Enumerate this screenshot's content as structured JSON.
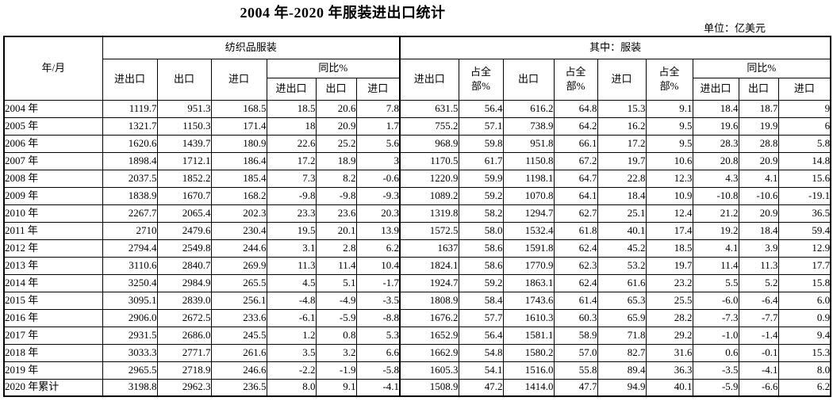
{
  "title": "2004 年-2020 年服装进出口统计",
  "unit_note": "单位：亿美元",
  "table": {
    "year_col_header": "年/月",
    "textile_group_header": "纺织品服装",
    "apparel_group_header": "其中：服装",
    "labels": {
      "import_export": "进出口",
      "export": "出口",
      "import": "进口",
      "yoy": "同比%",
      "share": "占全部%"
    },
    "rows": [
      {
        "year": "2004 年",
        "values": [
          "1119.7",
          "951.3",
          "168.5",
          "18.5",
          "20.6",
          "7.8",
          "631.5",
          "56.4",
          "616.2",
          "64.8",
          "15.3",
          "9.1",
          "18.4",
          "18.7",
          "9"
        ]
      },
      {
        "year": "2005 年",
        "values": [
          "1321.7",
          "1150.3",
          "171.4",
          "18",
          "20.9",
          "1.7",
          "755.2",
          "57.1",
          "738.9",
          "64.2",
          "16.2",
          "9.5",
          "19.6",
          "19.9",
          "6"
        ]
      },
      {
        "year": "2006 年",
        "values": [
          "1620.6",
          "1439.7",
          "180.9",
          "22.6",
          "25.2",
          "5.6",
          "968.9",
          "59.8",
          "951.8",
          "66.1",
          "17.2",
          "9.5",
          "28.3",
          "28.8",
          "5.8"
        ]
      },
      {
        "year": "2007 年",
        "values": [
          "1898.4",
          "1712.1",
          "186.4",
          "17.2",
          "18.9",
          "3",
          "1170.5",
          "61.7",
          "1150.8",
          "67.2",
          "19.7",
          "10.6",
          "20.8",
          "20.9",
          "14.8"
        ]
      },
      {
        "year": "2008 年",
        "values": [
          "2037.5",
          "1852.2",
          "185.4",
          "7.3",
          "8.2",
          "-0.6",
          "1220.9",
          "59.9",
          "1198.1",
          "64.7",
          "22.8",
          "12.3",
          "4.3",
          "4.1",
          "15.6"
        ]
      },
      {
        "year": "2009 年",
        "values": [
          "1838.9",
          "1670.7",
          "168.2",
          "-9.8",
          "-9.8",
          "-9.3",
          "1089.2",
          "59.2",
          "1070.8",
          "64.1",
          "18.4",
          "10.9",
          "-10.8",
          "-10.6",
          "-19.1"
        ]
      },
      {
        "year": "2010 年",
        "values": [
          "2267.7",
          "2065.4",
          "202.3",
          "23.3",
          "23.6",
          "20.3",
          "1319.8",
          "58.2",
          "1294.7",
          "62.7",
          "25.1",
          "12.4",
          "21.2",
          "20.9",
          "36.5"
        ]
      },
      {
        "year": "2011 年",
        "values": [
          "2710",
          "2479.6",
          "230.4",
          "19.5",
          "20.1",
          "13.9",
          "1572.5",
          "58.0",
          "1532.4",
          "61.8",
          "40.1",
          "17.4",
          "19.2",
          "18.4",
          "59.4"
        ]
      },
      {
        "year": "2012 年",
        "values": [
          "2794.4",
          "2549.8",
          "244.6",
          "3.1",
          "2.8",
          "6.2",
          "1637",
          "58.6",
          "1591.8",
          "62.4",
          "45.2",
          "18.5",
          "4.1",
          "3.9",
          "12.9"
        ]
      },
      {
        "year": "2013 年",
        "values": [
          "3110.6",
          "2840.7",
          "269.9",
          "11.3",
          "11.4",
          "10.4",
          "1824.1",
          "58.6",
          "1770.9",
          "62.3",
          "53.2",
          "19.7",
          "11.4",
          "11.3",
          "17.7"
        ]
      },
      {
        "year": "2014 年",
        "values": [
          "3250.4",
          "2984.9",
          "265.5",
          "4.5",
          "5.1",
          "-1.7",
          "1924.7",
          "59.2",
          "1863.1",
          "62.4",
          "61.6",
          "23.2",
          "5.5",
          "5.2",
          "15.8"
        ]
      },
      {
        "year": "2015 年",
        "values": [
          "3095.1",
          "2839.0",
          "256.1",
          "-4.8",
          "-4.9",
          "-3.5",
          "1808.9",
          "58.4",
          "1743.6",
          "61.4",
          "65.3",
          "25.5",
          "-6.0",
          "-6.4",
          "6.0"
        ]
      },
      {
        "year": "2016 年",
        "values": [
          "2906.0",
          "2672.5",
          "233.6",
          "-6.1",
          "-5.9",
          "-8.8",
          "1676.2",
          "57.7",
          "1610.3",
          "60.3",
          "65.9",
          "28.2",
          "-7.3",
          "-7.7",
          "0.9"
        ]
      },
      {
        "year": "2017 年",
        "values": [
          "2931.5",
          "2686.0",
          "245.5",
          "1.2",
          "0.8",
          "5.3",
          "1652.9",
          "56.4",
          "1581.1",
          "58.9",
          "71.8",
          "29.2",
          "-1.0",
          "-1.4",
          "9.4"
        ]
      },
      {
        "year": "2018 年",
        "values": [
          "3033.3",
          "2771.7",
          "261.6",
          "3.5",
          "3.2",
          "6.6",
          "1662.9",
          "54.8",
          "1580.2",
          "57.0",
          "82.7",
          "31.6",
          "0.6",
          "-0.1",
          "15.3"
        ]
      },
      {
        "year": "2019 年",
        "values": [
          "2965.5",
          "2718.9",
          "246.6",
          "-2.2",
          "-1.9",
          "-5.8",
          "1605.3",
          "54.1",
          "1516.0",
          "55.8",
          "89.4",
          "36.3",
          "-3.5",
          "-4.1",
          "8.0"
        ]
      },
      {
        "year": "2020 年累计",
        "values": [
          "3198.8",
          "2962.3",
          "236.5",
          "8.0",
          "9.1",
          "-4.1",
          "1508.9",
          "47.2",
          "1414.0",
          "47.7",
          "94.9",
          "40.1",
          "-5.9",
          "-6.6",
          "6.2"
        ]
      }
    ]
  }
}
